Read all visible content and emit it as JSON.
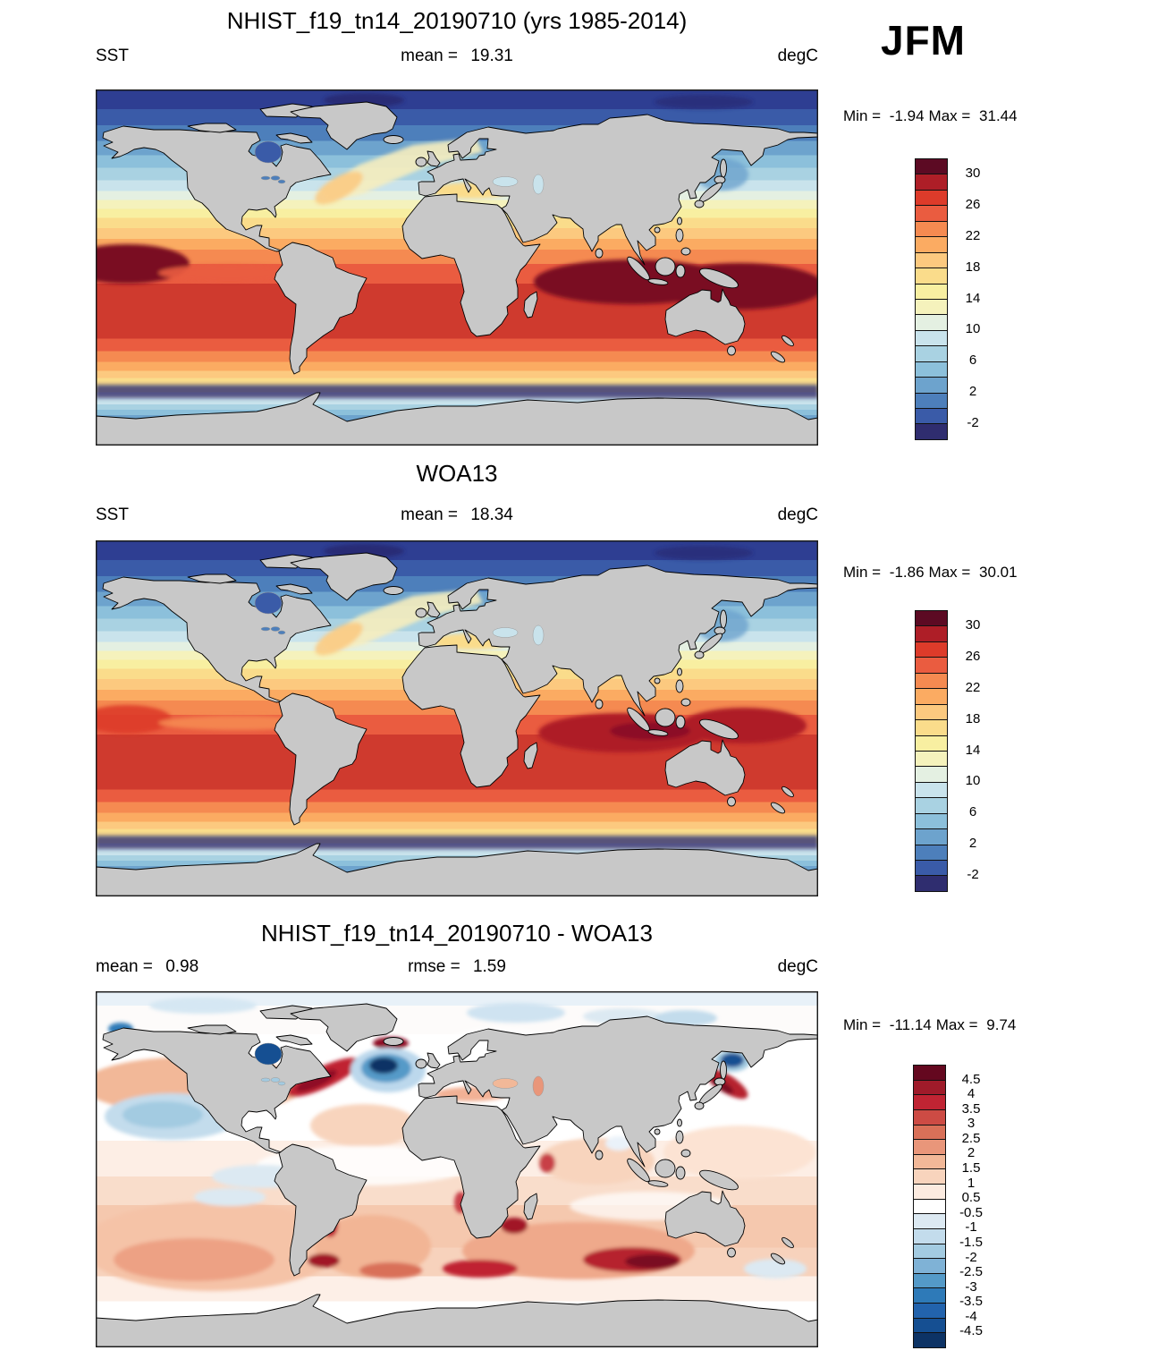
{
  "season": "JFM",
  "panels": [
    {
      "title": "NHIST_f19_tn14_20190710 (yrs 1985-2014)",
      "row": {
        "left_label": "SST",
        "center_label": "mean = ",
        "center_value": "19.31",
        "right_label": "degC"
      },
      "minmax": {
        "min_label": "Min = ",
        "min_value": "-1.94",
        "max_label": "Max = ",
        "max_value": "31.44"
      },
      "colorbar": {
        "tick_labels": [
          "30",
          "26",
          "22",
          "18",
          "14",
          "10",
          "6",
          "2",
          "-2"
        ],
        "colors": [
          "#5c0a23",
          "#ae1e27",
          "#dd3b2a",
          "#ea5c40",
          "#f58a51",
          "#fbab62",
          "#fcc97f",
          "#fadc8b",
          "#f8efa1",
          "#f5f2bc",
          "#e4f0e2",
          "#c9e3ec",
          "#a9d2e2",
          "#8cc0db",
          "#6da3cd",
          "#4d7fbb",
          "#3a5ba8",
          "#2f2d6f"
        ]
      }
    },
    {
      "title": "WOA13",
      "row": {
        "left_label": "SST",
        "center_label": "mean = ",
        "center_value": "18.34",
        "right_label": "degC"
      },
      "minmax": {
        "min_label": "Min = ",
        "min_value": "-1.86",
        "max_label": "Max = ",
        "max_value": "30.01"
      },
      "colorbar": {
        "tick_labels": [
          "30",
          "26",
          "22",
          "18",
          "14",
          "10",
          "6",
          "2",
          "-2"
        ],
        "colors": [
          "#5c0a23",
          "#ae1e27",
          "#dd3b2a",
          "#ea5c40",
          "#f58a51",
          "#fbab62",
          "#fcc97f",
          "#fadc8b",
          "#f8efa1",
          "#f5f2bc",
          "#e4f0e2",
          "#c9e3ec",
          "#a9d2e2",
          "#8cc0db",
          "#6da3cd",
          "#4d7fbb",
          "#3a5ba8",
          "#2f2d6f"
        ]
      }
    },
    {
      "title": "NHIST_f19_tn14_20190710 - WOA13",
      "row": {
        "left_label": "mean = ",
        "left_value": "0.98",
        "center_label": "rmse = ",
        "center_value": "1.59",
        "right_label": "degC"
      },
      "minmax": {
        "min_label": "Min = ",
        "min_value": "-11.14",
        "max_label": "Max = ",
        "max_value": "9.74"
      },
      "colorbar": {
        "tick_labels": [
          "4.5",
          "4",
          "3.5",
          "3",
          "2.5",
          "2",
          "1.5",
          "1",
          "0.5",
          "-0.5",
          "-1",
          "-1.5",
          "-2",
          "-2.5",
          "-3",
          "-3.5",
          "-4",
          "-4.5"
        ],
        "colors": [
          "#64081f",
          "#9f1b2a",
          "#c02433",
          "#cd4b44",
          "#d97058",
          "#e9967a",
          "#f2b898",
          "#f8d4bd",
          "#fcebe0",
          "#ffffff",
          "#dce9f2",
          "#c3dcec",
          "#a3cbe1",
          "#7fb2d6",
          "#549ac8",
          "#2e7ab8",
          "#2263ad",
          "#154f92",
          "#0d3365"
        ]
      }
    }
  ],
  "colors": {
    "land": "#c8c8c8",
    "coastline": "#000000",
    "frame": "#1a1a1a"
  },
  "chart_data": {
    "type": "heatmap",
    "figure": "AMWG-style global SST comparison maps, equirectangular projection, gray land",
    "season": "JFM",
    "variable": "SST",
    "units": "degC",
    "panels": [
      {
        "name": "model",
        "title": "NHIST_f19_tn14_20190710 (yrs 1985-2014)",
        "mean": 19.31,
        "min": -1.94,
        "max": 31.44,
        "levels": [
          -2,
          0,
          2,
          4,
          6,
          8,
          10,
          12,
          14,
          16,
          18,
          20,
          22,
          24,
          26,
          28,
          30
        ],
        "labeled_ticks": [
          30,
          26,
          22,
          18,
          14,
          10,
          6,
          2,
          -2
        ]
      },
      {
        "name": "reference",
        "title": "WOA13",
        "mean": 18.34,
        "min": -1.86,
        "max": 30.01,
        "levels": [
          -2,
          0,
          2,
          4,
          6,
          8,
          10,
          12,
          14,
          16,
          18,
          20,
          22,
          24,
          26,
          28,
          30
        ],
        "labeled_ticks": [
          30,
          26,
          22,
          18,
          14,
          10,
          6,
          2,
          -2
        ]
      },
      {
        "name": "difference",
        "title": "NHIST_f19_tn14_20190710 - WOA13",
        "mean": 0.98,
        "rmse": 1.59,
        "min": -11.14,
        "max": 9.74,
        "levels": [
          -4.5,
          -4,
          -3.5,
          -3,
          -2.5,
          -2,
          -1.5,
          -1,
          -0.5,
          0.5,
          1,
          1.5,
          2,
          2.5,
          3,
          3.5,
          4,
          4.5
        ],
        "labeled_ticks": [
          4.5,
          4,
          3.5,
          3,
          2.5,
          2,
          1.5,
          1,
          0.5,
          -0.5,
          -1,
          -1.5,
          -2,
          -2.5,
          -3,
          -3.5,
          -4,
          -4.5
        ]
      }
    ],
    "legend_position": "right of each map",
    "grid": false
  }
}
